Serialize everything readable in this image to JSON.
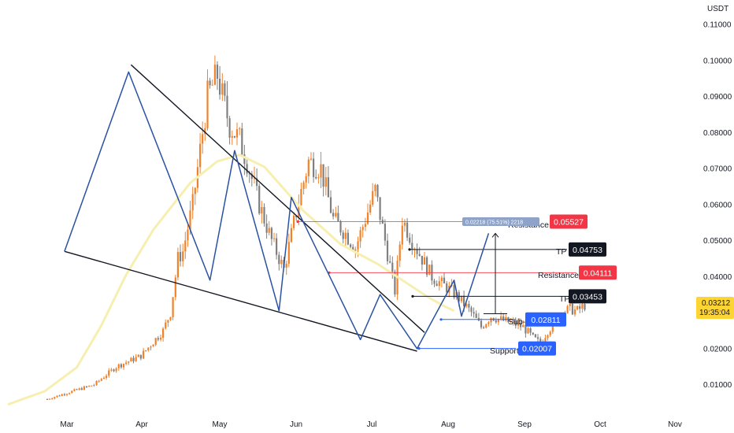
{
  "chart_data": {
    "type": "candlestick",
    "unit": "USDT",
    "x_ticks": [
      "Mar",
      "Apr",
      "May",
      "Jun",
      "Jul",
      "Aug",
      "Sep",
      "Oct",
      "Nov"
    ],
    "y_ticks": [
      "0.11000",
      "0.10000",
      "0.09000",
      "0.08000",
      "0.07000",
      "0.06000",
      "0.05000",
      "0.04000",
      "0.03000",
      "0.02000",
      "0.01000"
    ],
    "ylim": [
      0.0,
      0.113
    ],
    "grid": false,
    "last_price": {
      "value": "0.03212",
      "countdown": "19:35:04"
    },
    "levels": [
      {
        "name": "Resistance",
        "value": 0.05527,
        "value_text": "0.05527",
        "color": "#f23645"
      },
      {
        "name": "TP",
        "value": 0.04753,
        "value_text": "0.04753",
        "color": "#131722"
      },
      {
        "name": "Resistance",
        "value": 0.04111,
        "value_text": "0.04111",
        "color": "#f23645"
      },
      {
        "name": "TP",
        "value": 0.03453,
        "value_text": "0.03453",
        "color": "#131722"
      },
      {
        "name": "Sub-Support",
        "value": 0.02811,
        "value_text": "0.02811",
        "color": "#2962ff"
      },
      {
        "name": "Support",
        "value": 0.02007,
        "value_text": "0.02007",
        "color": "#2962ff"
      }
    ],
    "measure_label": "0.02218 (75.51%) 2218",
    "wedge": {
      "upper": [
        [
          "Mar 27",
          0.0988
        ],
        [
          "Jul 24",
          0.0245
        ]
      ],
      "lower": [
        [
          "Feb 28",
          0.047
        ],
        [
          "Jul 21",
          0.0193
        ]
      ]
    },
    "pattern_path": [
      [
        "Feb 28",
        0.047
      ],
      [
        "Mar 26",
        0.0968
      ],
      [
        "Apr 28",
        0.039
      ],
      [
        "May 8",
        0.075
      ],
      [
        "May 26",
        0.0305
      ],
      [
        "May 31",
        0.062
      ],
      [
        "Jun 28",
        0.0225
      ],
      [
        "Jul 6",
        0.035
      ],
      [
        "Jul 21",
        0.02
      ],
      [
        "Aug 5",
        0.039
      ],
      [
        "Aug 8",
        0.029
      ],
      [
        "Aug 19",
        0.052
      ]
    ],
    "ma_line": [
      [
        "Feb 5",
        0.0045
      ],
      [
        "Feb 20",
        0.0082
      ],
      [
        "Mar 5",
        0.0148
      ],
      [
        "Mar 15",
        0.0265
      ],
      [
        "Mar 25",
        0.0405
      ],
      [
        "Apr 5",
        0.053
      ],
      [
        "Apr 20",
        0.066
      ],
      [
        "May 1",
        0.072
      ],
      [
        "May 10",
        0.0738
      ],
      [
        "May 20",
        0.0705
      ],
      [
        "Jun 5",
        0.0582
      ],
      [
        "Jun 20",
        0.049
      ],
      [
        "Jul 5",
        0.0435
      ],
      [
        "Jul 15",
        0.039
      ],
      [
        "Jul 25",
        0.0345
      ],
      [
        "Aug 1",
        0.0318
      ],
      [
        "Aug 5",
        0.0305
      ]
    ],
    "candle_style": {
      "up": "#f0822c",
      "down": "#808080"
    },
    "colors": {
      "wedge": "#131722",
      "pattern": "#2952a3",
      "ma": "#f7efb0",
      "resistance": "#f23645",
      "support": "#2962ff",
      "tp": "#131722",
      "price_tag": "#fcd535"
    }
  }
}
